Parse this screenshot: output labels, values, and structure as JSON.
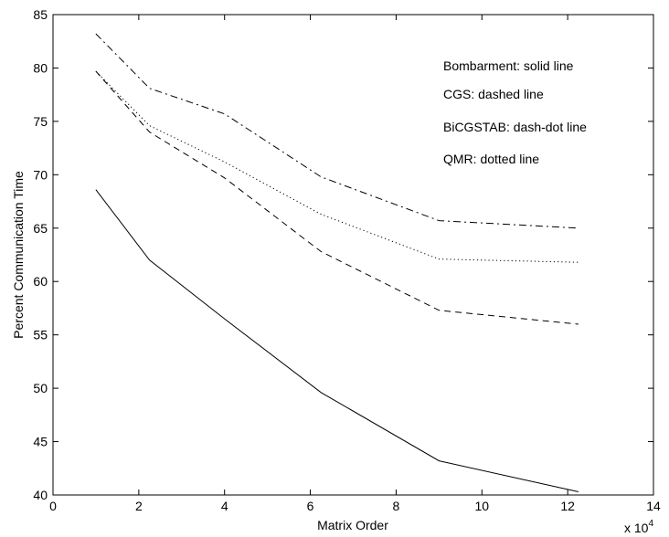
{
  "chart_data": {
    "type": "line",
    "xlabel": "Matrix Order",
    "ylabel": "Percent Communication Time",
    "x_multiplier_label": "x 10",
    "x_multiplier_exponent": "4",
    "xlim": [
      0,
      14
    ],
    "ylim": [
      40,
      85
    ],
    "xticks": [
      0,
      2,
      4,
      6,
      8,
      10,
      12,
      14
    ],
    "yticks": [
      40,
      45,
      50,
      55,
      60,
      65,
      70,
      75,
      80,
      85
    ],
    "grid": false,
    "series": [
      {
        "name": "Bombarment",
        "style": "solid",
        "x": [
          1.0,
          2.25,
          4.0,
          6.25,
          9.0,
          12.25
        ],
        "y": [
          68.6,
          62.0,
          56.5,
          49.6,
          43.2,
          40.3
        ]
      },
      {
        "name": "CGS",
        "style": "dashed",
        "x": [
          1.0,
          2.25,
          4.0,
          6.25,
          9.0,
          12.25
        ],
        "y": [
          79.7,
          74.0,
          69.7,
          62.8,
          57.3,
          56.0
        ]
      },
      {
        "name": "BiCGSTAB",
        "style": "dash-dot",
        "x": [
          1.0,
          2.25,
          4.0,
          6.25,
          9.0,
          12.25
        ],
        "y": [
          83.2,
          78.1,
          75.7,
          69.8,
          65.7,
          65.0
        ]
      },
      {
        "name": "QMR",
        "style": "dotted",
        "x": [
          1.0,
          2.25,
          4.0,
          6.25,
          9.0,
          12.25
        ],
        "y": [
          79.7,
          74.6,
          71.2,
          66.3,
          62.1,
          61.8
        ]
      }
    ],
    "annotations": [
      "Bombarment: solid line",
      "CGS: dashed line",
      "BiCGSTAB: dash-dot line",
      "QMR: dotted line"
    ]
  }
}
